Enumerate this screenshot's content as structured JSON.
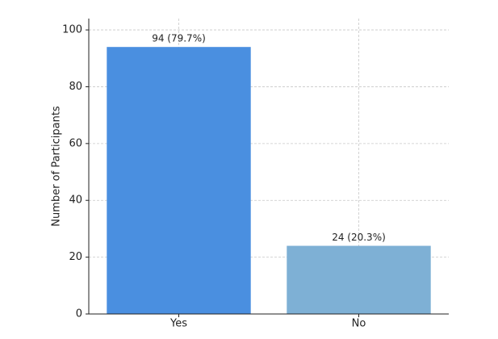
{
  "chart_data": {
    "type": "bar",
    "y_label": "Number of Participants",
    "categories": [
      "Yes",
      "No"
    ],
    "values": [
      94,
      24
    ],
    "value_labels": [
      "94 (79.7%)",
      "24 (20.3%)"
    ],
    "colors": [
      "#4a8fe0",
      "#7eb0d5"
    ],
    "ylim": [
      0,
      104
    ],
    "yticks": [
      0,
      20,
      40,
      60,
      80,
      100
    ],
    "grid": true
  }
}
